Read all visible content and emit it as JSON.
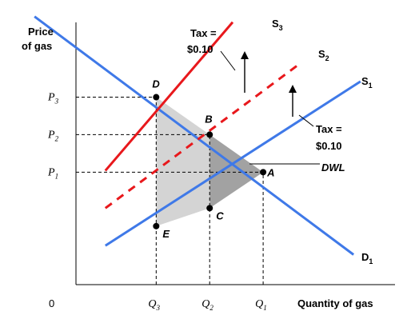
{
  "chart_data": {
    "type": "line",
    "title": "",
    "ylabel": [
      "Price",
      "of gas"
    ],
    "xlabel": "Quantity of gas",
    "origin_label": "0",
    "x_ticks": [
      {
        "key": "Q3",
        "letter": "Q",
        "sub": "3",
        "value": 3
      },
      {
        "key": "Q2",
        "letter": "Q",
        "sub": "2",
        "value": 5
      },
      {
        "key": "Q1",
        "letter": "Q",
        "sub": "1",
        "value": 7
      }
    ],
    "y_ticks": [
      {
        "key": "P1",
        "letter": "P",
        "sub": "1",
        "value": 3
      },
      {
        "key": "P2",
        "letter": "P",
        "sub": "2",
        "value": 4
      },
      {
        "key": "P3",
        "letter": "P",
        "sub": "3",
        "value": 5
      }
    ],
    "xlim": [
      0,
      12.2
    ],
    "ylim": [
      0,
      7.4
    ],
    "colors": {
      "demand": "#3f79e8",
      "supply": "#3f79e8",
      "taxed_supply": "#e8181c",
      "triangle_light": "#d4d4d4",
      "triangle_dark": "#a2a2a2"
    },
    "series": [
      {
        "id": "D1",
        "letter": "D",
        "sub": "1",
        "style": "solid",
        "color": "#3f79e8",
        "x": [
          -1.55,
          10.38
        ],
        "y": [
          7.15,
          0.8
        ]
      },
      {
        "id": "S1",
        "letter": "S",
        "sub": "1",
        "style": "solid",
        "color": "#3f79e8",
        "x": [
          1.1,
          10.64
        ],
        "y": [
          1.04,
          5.42
        ]
      },
      {
        "id": "S2",
        "letter": "S",
        "sub": "2",
        "style": "dashed",
        "color": "#e8181c",
        "x": [
          1.1,
          8.27
        ],
        "y": [
          2.04,
          5.84
        ]
      },
      {
        "id": "S3",
        "letter": "S",
        "sub": "3",
        "style": "solid",
        "color": "#e8181c",
        "x": [
          1.1,
          5.86
        ],
        "y": [
          3.04,
          7.0
        ]
      }
    ],
    "points": [
      {
        "label": "D",
        "x": 3,
        "y": 5
      },
      {
        "label": "B",
        "x": 5,
        "y": 4
      },
      {
        "label": "A",
        "x": 7,
        "y": 3
      },
      {
        "label": "C",
        "x": 5,
        "y": 2.04
      },
      {
        "label": "E",
        "x": 3,
        "y": 1.56
      }
    ],
    "annotations": {
      "tax_top": {
        "line1": "Tax =",
        "line2": "$0.10"
      },
      "tax_right": {
        "line1": "Tax =",
        "line2": "$0.10"
      },
      "dwl": "DWL"
    }
  }
}
